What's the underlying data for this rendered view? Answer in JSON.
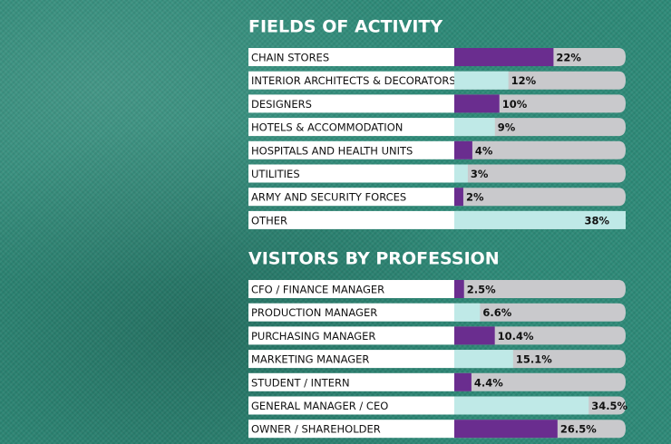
{
  "chart_data": [
    {
      "type": "bar",
      "orientation": "horizontal",
      "title": "FIELDS OF ACTIVITY",
      "categories": [
        "CHAIN STORES",
        "INTERIOR ARCHITECTS & DECORATORS",
        "DESIGNERS",
        "HOTELS & ACCOMMODATION",
        "HOSPITALS AND HEALTH UNITS",
        "UTILITIES",
        "ARMY AND SECURITY FORCES",
        "OTHER"
      ],
      "values": [
        22,
        12,
        10,
        9,
        4,
        3,
        2,
        38
      ],
      "value_labels": [
        "22%",
        "12%",
        "10%",
        "9%",
        "4%",
        "3%",
        "2%",
        "38%"
      ],
      "colors": [
        "#6a2d8f",
        "#bfe9e7"
      ],
      "xlim": [
        0,
        38
      ]
    },
    {
      "type": "bar",
      "orientation": "horizontal",
      "title": "VISITORS BY PROFESSION",
      "categories": [
        "CFO / FINANCE MANAGER",
        "PRODUCTION MANAGER",
        "PURCHASING MANAGER",
        "MARKETING MANAGER",
        "STUDENT / INTERN",
        "GENERAL MANAGER / CEO",
        "OWNER / SHAREHOLDER"
      ],
      "values": [
        2.5,
        6.6,
        10.4,
        15.1,
        4.4,
        34.5,
        26.5
      ],
      "value_labels": [
        "2.5%",
        "6.6%",
        "10.4%",
        "15.1%",
        "4.4%",
        "34.5%",
        "26.5%"
      ],
      "colors": [
        "#6a2d8f",
        "#bfe9e7"
      ],
      "xlim": [
        0,
        44
      ]
    }
  ]
}
